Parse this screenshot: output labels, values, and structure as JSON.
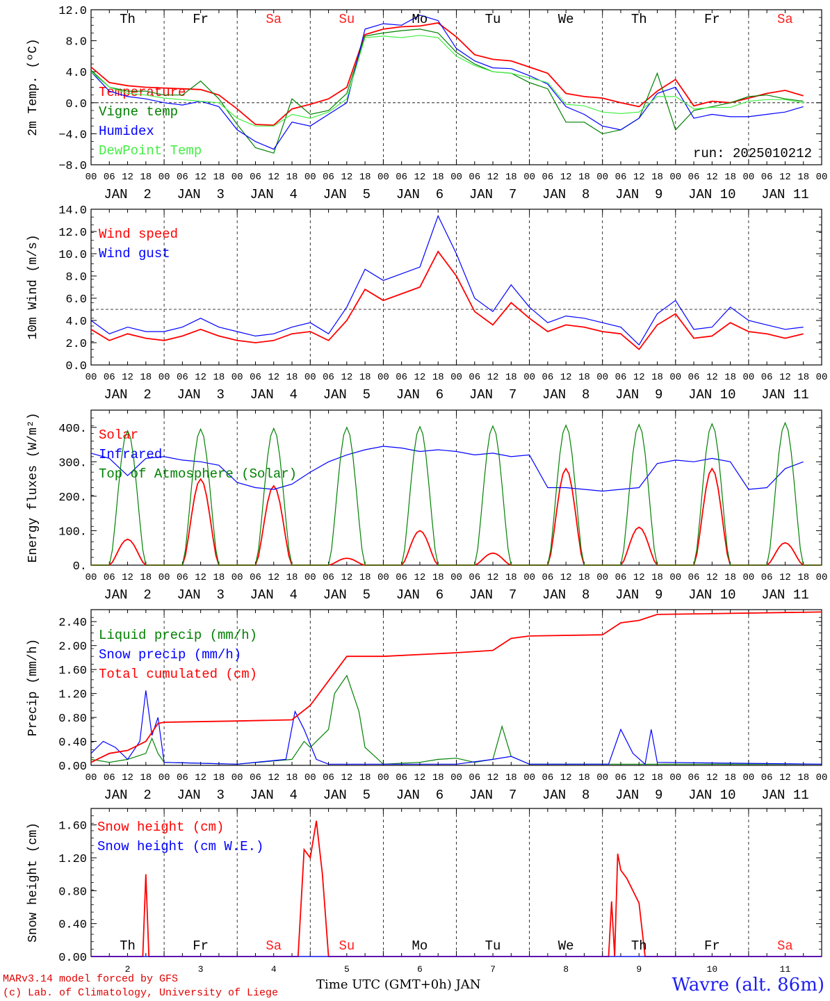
{
  "meteogram": {
    "run_label": "run: 2025010212",
    "time_ticks": [
      "00",
      "06",
      "12",
      "18"
    ],
    "date_labels": [
      "JAN  2",
      "JAN  3",
      "JAN  4",
      "JAN  5",
      "JAN  6",
      "JAN  7",
      "JAN  8",
      "JAN  9",
      "JAN 10",
      "JAN 11"
    ],
    "day_names": [
      "Th",
      "Fr",
      "Sa",
      "Su",
      "Mo",
      "Tu",
      "We",
      "Th",
      "Fr",
      "Sa"
    ],
    "weekend_color": "#ff2020",
    "bottom_day_numbers": [
      "2",
      "3",
      "4",
      "5",
      "6",
      "7",
      "8",
      "9",
      "10",
      "11"
    ],
    "x_title": "Time UTC (GMT+0h) JAN",
    "station": "Wavre (alt. 86m)",
    "credit_line1": "MARv3.14 model forced by GFS",
    "credit_line2": "(c) Lab. of Climatology, University of Liege"
  },
  "chart_data": [
    {
      "type": "line",
      "ylabel": "2m Temp. (ºC)",
      "ylim": [
        -8,
        12
      ],
      "yticks": [
        "12.0",
        "8.0",
        "4.0",
        "0.0",
        "−4.0",
        "−8.0"
      ],
      "reference_line": 0,
      "legend_position": "left",
      "series": [
        {
          "name": "Temperature",
          "color": "#ff0000",
          "x": [
            0,
            6,
            12,
            18,
            24,
            30,
            36,
            42,
            48,
            54,
            60,
            66,
            72,
            78,
            84,
            90,
            96,
            102,
            108,
            114,
            120,
            126,
            132,
            138,
            144,
            150,
            156,
            162,
            168,
            174,
            180,
            186,
            192,
            198,
            204,
            210,
            216,
            222,
            228,
            234
          ],
          "y": [
            4.6,
            2.6,
            2.2,
            2.0,
            1.9,
            1.8,
            1.7,
            1.0,
            -0.8,
            -2.8,
            -2.9,
            -0.8,
            -0.2,
            0.5,
            2.0,
            8.8,
            9.5,
            9.8,
            9.9,
            10.3,
            8.5,
            6.2,
            5.6,
            5.4,
            4.6,
            3.8,
            1.2,
            0.8,
            0.6,
            0.0,
            -0.5,
            1.5,
            3.0,
            -0.4,
            0.2,
            0.0,
            0.6,
            1.2,
            1.6,
            0.9
          ]
        },
        {
          "name": "Vigne temp",
          "color": "#008000",
          "x": [
            0,
            6,
            12,
            18,
            24,
            30,
            36,
            42,
            48,
            54,
            60,
            66,
            72,
            78,
            84,
            90,
            96,
            102,
            108,
            114,
            120,
            126,
            132,
            138,
            144,
            150,
            156,
            162,
            168,
            174,
            180,
            186,
            192,
            198,
            204,
            210,
            216,
            222,
            228,
            234
          ],
          "y": [
            4.2,
            2.0,
            1.5,
            1.5,
            1.0,
            1.0,
            2.8,
            0.5,
            -2.8,
            -5.8,
            -6.5,
            0.5,
            -1.5,
            -1.0,
            1.2,
            8.6,
            9.0,
            9.3,
            9.5,
            9.0,
            6.5,
            5.0,
            4.0,
            3.8,
            2.6,
            1.8,
            -2.5,
            -2.5,
            -4.0,
            -3.5,
            -2.0,
            3.8,
            -3.5,
            -1.0,
            -0.5,
            0.0,
            0.8,
            1.0,
            0.5,
            0.2
          ]
        },
        {
          "name": "Humidex",
          "color": "#0000ff",
          "x": [
            0,
            6,
            12,
            18,
            24,
            30,
            36,
            42,
            48,
            54,
            60,
            66,
            72,
            78,
            84,
            90,
            96,
            102,
            108,
            114,
            120,
            126,
            132,
            138,
            144,
            150,
            156,
            162,
            168,
            174,
            180,
            186,
            192,
            198,
            204,
            210,
            216,
            222,
            228,
            234
          ],
          "y": [
            4.0,
            1.5,
            0.8,
            0.5,
            0.0,
            -0.3,
            0.2,
            -0.5,
            -3.5,
            -5.0,
            -6.0,
            -2.5,
            -3.0,
            -1.5,
            0.0,
            9.5,
            10.2,
            10.0,
            11.3,
            10.6,
            7.0,
            5.4,
            4.5,
            4.4,
            3.5,
            2.4,
            -0.5,
            -1.5,
            -3.0,
            -3.5,
            -2.0,
            1.2,
            2.0,
            -2.0,
            -1.5,
            -1.8,
            -1.8,
            -1.5,
            -1.2,
            -0.5
          ]
        },
        {
          "name": "DewPoint Temp",
          "color": "#44ee44",
          "x": [
            0,
            6,
            12,
            18,
            24,
            30,
            36,
            42,
            48,
            54,
            60,
            66,
            72,
            78,
            84,
            90,
            96,
            102,
            108,
            114,
            120,
            126,
            132,
            138,
            144,
            150,
            156,
            162,
            168,
            174,
            180,
            186,
            192,
            198,
            204,
            210,
            216,
            222,
            228,
            234
          ],
          "y": [
            4.0,
            2.0,
            1.2,
            1.0,
            0.6,
            0.4,
            0.2,
            0.0,
            -2.0,
            -3.0,
            -3.0,
            -1.5,
            -2.0,
            -1.2,
            0.5,
            8.4,
            8.6,
            8.4,
            8.7,
            8.4,
            6.0,
            4.8,
            4.0,
            3.8,
            3.2,
            2.6,
            -0.2,
            -0.4,
            -1.2,
            -1.4,
            -1.2,
            0.8,
            0.8,
            -0.8,
            -0.6,
            -0.6,
            0.2,
            0.4,
            0.4,
            0.0
          ]
        }
      ]
    },
    {
      "type": "line",
      "ylabel": "10m Wind (m/s)",
      "ylim": [
        0,
        14
      ],
      "yticks": [
        "14.0",
        "12.0",
        "10.0",
        "8.0",
        "6.0",
        "4.0",
        "2.0",
        "0.0"
      ],
      "reference_line": 5,
      "legend_position": "top-left",
      "series": [
        {
          "name": "Wind speed",
          "color": "#ff0000",
          "x": [
            0,
            6,
            12,
            18,
            24,
            30,
            36,
            42,
            48,
            54,
            60,
            66,
            72,
            78,
            84,
            90,
            96,
            102,
            108,
            114,
            120,
            126,
            132,
            138,
            144,
            150,
            156,
            162,
            168,
            174,
            180,
            186,
            192,
            198,
            204,
            210,
            216,
            222,
            228,
            234
          ],
          "y": [
            3.2,
            2.2,
            2.8,
            2.4,
            2.2,
            2.6,
            3.2,
            2.6,
            2.2,
            2.0,
            2.2,
            2.8,
            3.0,
            2.2,
            4.0,
            6.8,
            5.8,
            6.4,
            7.0,
            10.2,
            8.0,
            4.8,
            3.6,
            5.6,
            4.2,
            3.0,
            3.6,
            3.4,
            3.0,
            2.8,
            1.4,
            3.6,
            4.6,
            2.4,
            2.6,
            3.8,
            3.0,
            2.8,
            2.4,
            2.8
          ]
        },
        {
          "name": "Wind gust",
          "color": "#0000ff",
          "x": [
            0,
            6,
            12,
            18,
            24,
            30,
            36,
            42,
            48,
            54,
            60,
            66,
            72,
            78,
            84,
            90,
            96,
            102,
            108,
            114,
            120,
            126,
            132,
            138,
            144,
            150,
            156,
            162,
            168,
            174,
            180,
            186,
            192,
            198,
            204,
            210,
            216,
            222,
            228,
            234
          ],
          "y": [
            4.0,
            2.8,
            3.4,
            3.0,
            3.0,
            3.4,
            4.2,
            3.4,
            3.0,
            2.6,
            2.8,
            3.4,
            3.8,
            2.8,
            5.2,
            8.6,
            7.6,
            8.2,
            8.8,
            13.4,
            10.0,
            6.0,
            4.8,
            7.2,
            5.2,
            3.8,
            4.4,
            4.2,
            3.8,
            3.4,
            1.8,
            4.6,
            5.8,
            3.2,
            3.4,
            5.2,
            4.0,
            3.6,
            3.2,
            3.4
          ]
        }
      ]
    },
    {
      "type": "line",
      "ylabel": "Energy fluxes (W/m²)",
      "ylim": [
        0,
        450
      ],
      "yticks": [
        "400.",
        "300.",
        "200.",
        "100.",
        "0."
      ],
      "legend_position": "top-left",
      "series": [
        {
          "name": "Solar",
          "color": "#ff0000",
          "peaks": [
            75,
            250,
            230,
            20,
            100,
            35,
            280,
            110,
            280,
            65
          ]
        },
        {
          "name": "Infrared",
          "color": "#0000ff",
          "x": [
            0,
            6,
            12,
            18,
            24,
            30,
            36,
            42,
            48,
            54,
            60,
            66,
            72,
            78,
            84,
            90,
            96,
            102,
            108,
            114,
            120,
            126,
            132,
            138,
            144,
            150,
            156,
            162,
            168,
            174,
            180,
            186,
            192,
            198,
            204,
            210,
            216,
            222,
            228,
            234
          ],
          "y": [
            325,
            310,
            260,
            310,
            315,
            305,
            300,
            290,
            240,
            225,
            220,
            235,
            270,
            300,
            320,
            335,
            345,
            340,
            330,
            335,
            330,
            320,
            325,
            315,
            320,
            225,
            225,
            220,
            215,
            220,
            225,
            295,
            305,
            300,
            310,
            300,
            220,
            225,
            280,
            300
          ]
        },
        {
          "name": "Top of Atmosphere (Solar)",
          "color": "#008000",
          "peaks": [
            390,
            395,
            397,
            400,
            402,
            404,
            406,
            408,
            410,
            413
          ]
        }
      ]
    },
    {
      "type": "line",
      "ylabel": "Precip (mm/h)",
      "ylim": [
        0,
        2.6
      ],
      "yticks": [
        "2.40",
        "2.00",
        "1.60",
        "1.20",
        "0.80",
        "0.40",
        "0.00"
      ],
      "legend_position": "top-left",
      "series": [
        {
          "name": "Liquid precip (mm/h)",
          "color": "#008000",
          "x": [
            0,
            6,
            12,
            18,
            20,
            22,
            24,
            48,
            66,
            70,
            72,
            78,
            80,
            84,
            88,
            90,
            96,
            108,
            114,
            120,
            126,
            132,
            135,
            138,
            144,
            174,
            240
          ],
          "y": [
            0.1,
            0.05,
            0.1,
            0.2,
            0.45,
            0.2,
            0.05,
            0.02,
            0.1,
            0.4,
            0.3,
            0.6,
            1.2,
            1.5,
            0.9,
            0.3,
            0.02,
            0.05,
            0.1,
            0.12,
            0.05,
            0.1,
            0.65,
            0.15,
            0.02,
            0.02,
            0.02
          ]
        },
        {
          "name": "Snow precip (mm/h)",
          "color": "#0000ff",
          "x": [
            0,
            4,
            8,
            12,
            16,
            18,
            20,
            22,
            24,
            48,
            64,
            67,
            70,
            74,
            78,
            120,
            132,
            138,
            144,
            170,
            174,
            178,
            182,
            184,
            186,
            240
          ],
          "y": [
            0.2,
            0.4,
            0.3,
            0.1,
            0.4,
            1.25,
            0.5,
            0.8,
            0.05,
            0.02,
            0.1,
            0.9,
            0.6,
            0.1,
            0.02,
            0.02,
            0.1,
            0.15,
            0.02,
            0.02,
            0.6,
            0.2,
            0.02,
            0.6,
            0.05,
            0.02
          ]
        },
        {
          "name": "Total cumulated (cm)",
          "color": "#ff0000",
          "x": [
            0,
            6,
            12,
            18,
            22,
            24,
            48,
            66,
            72,
            84,
            96,
            120,
            132,
            138,
            144,
            168,
            174,
            180,
            186,
            240
          ],
          "y": [
            0.05,
            0.2,
            0.25,
            0.4,
            0.7,
            0.72,
            0.74,
            0.76,
            1.0,
            1.82,
            1.82,
            1.88,
            1.92,
            2.12,
            2.16,
            2.18,
            2.38,
            2.42,
            2.52,
            2.56
          ]
        }
      ]
    },
    {
      "type": "line",
      "ylabel": "Snow height (cm)",
      "ylim": [
        0,
        1.8
      ],
      "yticks": [
        "1.60",
        "1.20",
        "0.80",
        "0.40",
        "0.00"
      ],
      "legend_position": "top-left",
      "series": [
        {
          "name": "Snow height (cm)",
          "color": "#ff0000",
          "x": [
            0,
            17,
            18,
            19,
            20,
            68,
            70,
            72,
            74,
            76,
            78,
            80,
            170,
            171,
            172,
            173,
            174,
            176,
            180,
            182,
            184,
            240
          ],
          "y": [
            0,
            0,
            1.0,
            0,
            0,
            0,
            1.3,
            1.2,
            1.65,
            1.0,
            0,
            0,
            0,
            0.67,
            0,
            1.25,
            1.05,
            0.95,
            0.65,
            0,
            0,
            0
          ]
        },
        {
          "name": "Snow height (cm W.E.)",
          "color": "#0000ff",
          "x": [
            0,
            240
          ],
          "y": [
            0,
            0
          ]
        }
      ]
    }
  ]
}
